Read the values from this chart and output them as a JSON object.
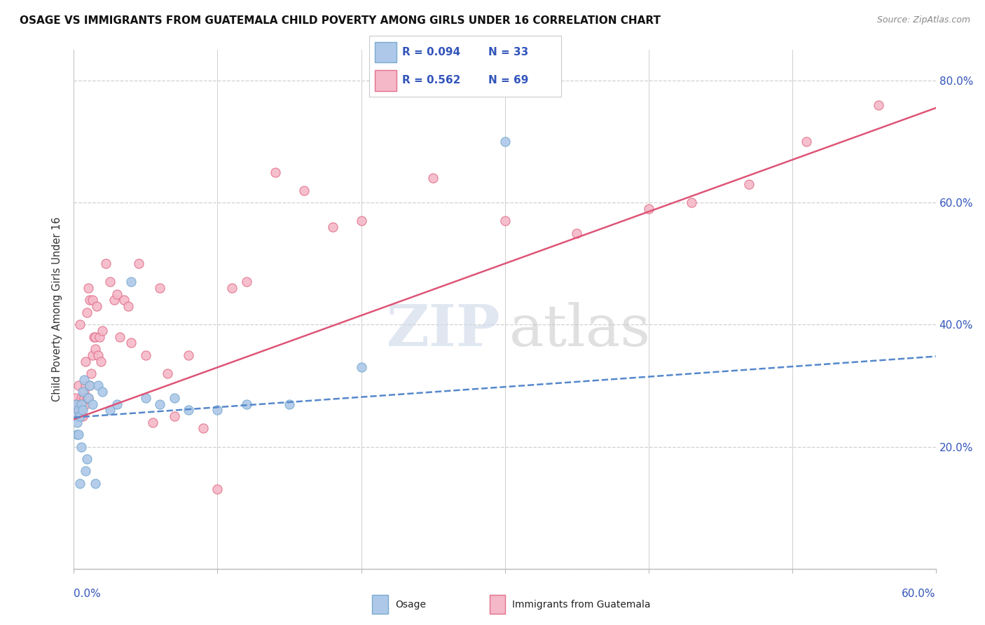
{
  "title": "OSAGE VS IMMIGRANTS FROM GUATEMALA CHILD POVERTY AMONG GIRLS UNDER 16 CORRELATION CHART",
  "source": "Source: ZipAtlas.com",
  "ylabel": "Child Poverty Among Girls Under 16",
  "xmin": 0.0,
  "xmax": 0.6,
  "ymin": 0.0,
  "ymax": 0.85,
  "yticks": [
    0.0,
    0.2,
    0.4,
    0.6,
    0.8
  ],
  "ytick_labels": [
    "",
    "20.0%",
    "40.0%",
    "60.0%",
    "80.0%"
  ],
  "osage_fill_color": "#adc8e8",
  "osage_edge_color": "#7aaad0",
  "guatemala_fill_color": "#f5b8c8",
  "guatemala_edge_color": "#e0708a",
  "osage_line_color": "#5588cc",
  "guatemala_line_color": "#dd5577",
  "legend_R_color": "#3355bb",
  "osage_R": 0.094,
  "osage_N": 33,
  "guatemala_R": 0.562,
  "guatemala_N": 69,
  "osage_x": [
    0.001,
    0.001,
    0.002,
    0.002,
    0.003,
    0.003,
    0.004,
    0.004,
    0.005,
    0.005,
    0.006,
    0.006,
    0.007,
    0.008,
    0.009,
    0.01,
    0.011,
    0.013,
    0.015,
    0.017,
    0.02,
    0.025,
    0.03,
    0.04,
    0.05,
    0.06,
    0.07,
    0.08,
    0.1,
    0.12,
    0.15,
    0.2,
    0.3
  ],
  "osage_y": [
    0.25,
    0.27,
    0.22,
    0.24,
    0.26,
    0.22,
    0.25,
    0.14,
    0.27,
    0.2,
    0.26,
    0.29,
    0.31,
    0.16,
    0.18,
    0.28,
    0.3,
    0.27,
    0.14,
    0.3,
    0.29,
    0.26,
    0.27,
    0.47,
    0.28,
    0.27,
    0.28,
    0.26,
    0.26,
    0.27,
    0.27,
    0.33,
    0.7
  ],
  "guatemala_x": [
    0.001,
    0.001,
    0.002,
    0.002,
    0.003,
    0.003,
    0.003,
    0.004,
    0.004,
    0.005,
    0.005,
    0.005,
    0.006,
    0.006,
    0.006,
    0.007,
    0.007,
    0.007,
    0.008,
    0.008,
    0.008,
    0.009,
    0.009,
    0.01,
    0.01,
    0.011,
    0.011,
    0.012,
    0.013,
    0.013,
    0.014,
    0.015,
    0.015,
    0.016,
    0.017,
    0.018,
    0.019,
    0.02,
    0.022,
    0.025,
    0.028,
    0.03,
    0.032,
    0.035,
    0.038,
    0.04,
    0.045,
    0.05,
    0.055,
    0.06,
    0.065,
    0.07,
    0.08,
    0.09,
    0.1,
    0.11,
    0.12,
    0.14,
    0.16,
    0.18,
    0.2,
    0.25,
    0.3,
    0.35,
    0.4,
    0.43,
    0.47,
    0.51,
    0.56
  ],
  "guatemala_y": [
    0.26,
    0.28,
    0.25,
    0.27,
    0.27,
    0.3,
    0.25,
    0.26,
    0.4,
    0.26,
    0.28,
    0.27,
    0.25,
    0.27,
    0.27,
    0.29,
    0.28,
    0.28,
    0.3,
    0.34,
    0.27,
    0.28,
    0.42,
    0.46,
    0.28,
    0.3,
    0.44,
    0.32,
    0.35,
    0.44,
    0.38,
    0.36,
    0.38,
    0.43,
    0.35,
    0.38,
    0.34,
    0.39,
    0.5,
    0.47,
    0.44,
    0.45,
    0.38,
    0.44,
    0.43,
    0.37,
    0.5,
    0.35,
    0.24,
    0.46,
    0.32,
    0.25,
    0.35,
    0.23,
    0.13,
    0.46,
    0.47,
    0.65,
    0.62,
    0.56,
    0.57,
    0.64,
    0.57,
    0.55,
    0.59,
    0.6,
    0.63,
    0.7,
    0.76
  ],
  "osage_regline_x": [
    0.0,
    0.6
  ],
  "osage_regline_y": [
    0.248,
    0.348
  ],
  "guatemala_regline_x": [
    0.0,
    0.6
  ],
  "guatemala_regline_y": [
    0.245,
    0.755
  ]
}
